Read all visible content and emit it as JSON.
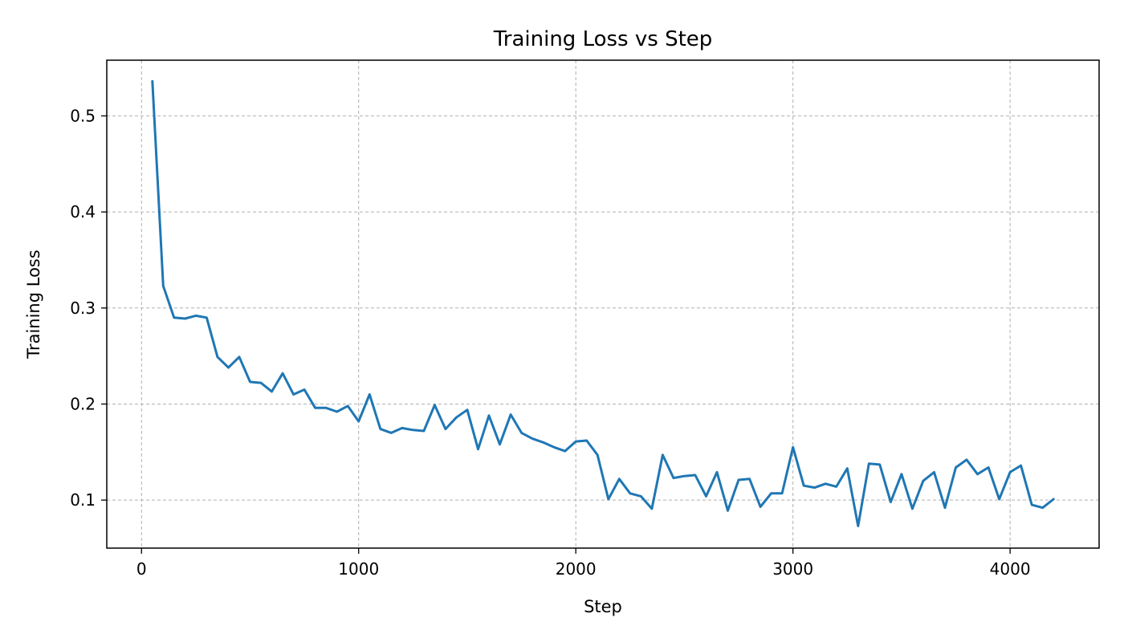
{
  "chart_data": {
    "type": "line",
    "title": "Training Loss vs Step",
    "xlabel": "Step",
    "ylabel": "Training Loss",
    "xlim": [
      -160,
      4410
    ],
    "ylim": [
      0.05,
      0.558
    ],
    "xticks": [
      0,
      1000,
      2000,
      3000,
      4000
    ],
    "xtick_labels": [
      "0",
      "1000",
      "2000",
      "3000",
      "4000"
    ],
    "yticks": [
      0.1,
      0.2,
      0.3,
      0.4,
      0.5
    ],
    "ytick_labels": [
      "0.1",
      "0.2",
      "0.3",
      "0.4",
      "0.5"
    ],
    "grid": true,
    "line_color": "#1f77b4",
    "series": [
      {
        "x": [
          50,
          100,
          150,
          200,
          250,
          300,
          350,
          400,
          450,
          500,
          550,
          600,
          650,
          700,
          750,
          800,
          850,
          900,
          950,
          1000,
          1050,
          1100,
          1150,
          1200,
          1250,
          1300,
          1350,
          1400,
          1450,
          1500,
          1550,
          1600,
          1650,
          1700,
          1750,
          1800,
          1850,
          1900,
          1950,
          2000,
          2050,
          2100,
          2150,
          2200,
          2250,
          2300,
          2350,
          2400,
          2450,
          2500,
          2550,
          2600,
          2650,
          2700,
          2750,
          2800,
          2850,
          2900,
          2950,
          3000,
          3050,
          3100,
          3150,
          3200,
          3250,
          3300,
          3350,
          3400,
          3450,
          3500,
          3550,
          3600,
          3650,
          3700,
          3750,
          3800,
          3850,
          3900,
          3950,
          4000,
          4050,
          4100,
          4150,
          4200
        ],
        "values": [
          0.536,
          0.323,
          0.29,
          0.289,
          0.292,
          0.29,
          0.249,
          0.238,
          0.249,
          0.223,
          0.222,
          0.213,
          0.232,
          0.21,
          0.215,
          0.196,
          0.196,
          0.192,
          0.198,
          0.182,
          0.21,
          0.174,
          0.17,
          0.175,
          0.173,
          0.172,
          0.199,
          0.174,
          0.186,
          0.194,
          0.153,
          0.188,
          0.158,
          0.189,
          0.17,
          0.164,
          0.16,
          0.155,
          0.151,
          0.161,
          0.162,
          0.147,
          0.101,
          0.122,
          0.107,
          0.104,
          0.091,
          0.147,
          0.123,
          0.125,
          0.126,
          0.104,
          0.129,
          0.089,
          0.121,
          0.122,
          0.093,
          0.107,
          0.107,
          0.155,
          0.115,
          0.113,
          0.117,
          0.114,
          0.133,
          0.073,
          0.138,
          0.137,
          0.098,
          0.127,
          0.091,
          0.12,
          0.129,
          0.092,
          0.134,
          0.142,
          0.127,
          0.134,
          0.101,
          0.129,
          0.136,
          0.095,
          0.092,
          0.101
        ]
      }
    ]
  }
}
